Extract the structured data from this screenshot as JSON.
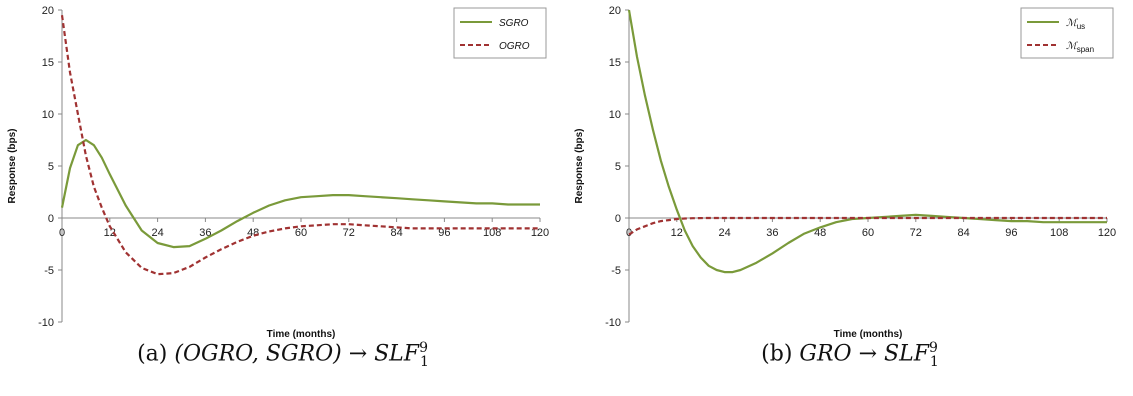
{
  "chart_data": [
    {
      "type": "line",
      "xlabel": "Time (months)",
      "ylabel": "Response (bps)",
      "xlim": [
        0,
        120
      ],
      "ylim": [
        -10,
        20
      ],
      "xticks": [
        0,
        12,
        24,
        36,
        48,
        60,
        72,
        84,
        96,
        108,
        120
      ],
      "yticks": [
        -10,
        -5,
        0,
        5,
        10,
        15,
        20
      ],
      "legend_position": "top-right",
      "caption": {
        "label": "(a)",
        "math": "(OGRO, SGRO) → SLF",
        "sup": "9",
        "sub": "1"
      },
      "series": [
        {
          "name": "SGRO",
          "color": "#7a9a3a",
          "dash": "solid",
          "x": [
            0,
            2,
            4,
            6,
            8,
            10,
            12,
            16,
            20,
            24,
            28,
            32,
            36,
            40,
            44,
            48,
            52,
            56,
            60,
            64,
            68,
            72,
            76,
            80,
            84,
            88,
            92,
            96,
            100,
            104,
            108,
            112,
            116,
            120
          ],
          "y": [
            1,
            4.8,
            7,
            7.5,
            7,
            5.8,
            4.2,
            1.2,
            -1.2,
            -2.4,
            -2.8,
            -2.7,
            -2.0,
            -1.2,
            -0.3,
            0.5,
            1.2,
            1.7,
            2.0,
            2.1,
            2.2,
            2.2,
            2.1,
            2.0,
            1.9,
            1.8,
            1.7,
            1.6,
            1.5,
            1.4,
            1.4,
            1.3,
            1.3,
            1.3
          ]
        },
        {
          "name": "OGRO",
          "color": "#a03232",
          "dash": "dashed",
          "x": [
            0,
            2,
            4,
            6,
            8,
            10,
            12,
            16,
            20,
            24,
            28,
            32,
            36,
            40,
            44,
            48,
            52,
            56,
            60,
            64,
            68,
            72,
            76,
            80,
            84,
            88,
            92,
            96,
            100,
            104,
            108,
            112,
            116,
            120
          ],
          "y": [
            19.5,
            14,
            10,
            6,
            3,
            1,
            -0.8,
            -3.3,
            -4.8,
            -5.4,
            -5.3,
            -4.7,
            -3.8,
            -3.0,
            -2.3,
            -1.7,
            -1.3,
            -1.0,
            -0.8,
            -0.7,
            -0.6,
            -0.6,
            -0.7,
            -0.8,
            -0.9,
            -1.0,
            -1.0,
            -1.0,
            -1.0,
            -1.0,
            -1.0,
            -1.0,
            -1.0,
            -1.0
          ]
        }
      ]
    },
    {
      "type": "line",
      "xlabel": "Time (months)",
      "ylabel": "Response (bps)",
      "xlim": [
        0,
        120
      ],
      "ylim": [
        -10,
        20
      ],
      "xticks": [
        0,
        12,
        24,
        36,
        48,
        60,
        72,
        84,
        96,
        108,
        120
      ],
      "yticks": [
        -10,
        -5,
        0,
        5,
        10,
        15,
        20
      ],
      "legend_position": "top-right",
      "caption": {
        "label": "(b)",
        "math": "GRO → SLF",
        "sup": "9",
        "sub": "1"
      },
      "series": [
        {
          "name": "M_us",
          "legend_main": "ℳ",
          "legend_sub": "us",
          "color": "#7a9a3a",
          "dash": "solid",
          "x": [
            0,
            2,
            4,
            6,
            8,
            10,
            12,
            14,
            16,
            18,
            20,
            22,
            24,
            26,
            28,
            32,
            36,
            40,
            44,
            48,
            52,
            56,
            60,
            64,
            68,
            72,
            76,
            80,
            84,
            88,
            92,
            96,
            100,
            104,
            108,
            112,
            116,
            120
          ],
          "y": [
            20,
            15.5,
            11.8,
            8.5,
            5.5,
            3.0,
            0.8,
            -1.2,
            -2.7,
            -3.8,
            -4.6,
            -5.0,
            -5.2,
            -5.2,
            -5.0,
            -4.3,
            -3.4,
            -2.4,
            -1.5,
            -0.9,
            -0.4,
            -0.1,
            0.0,
            0.1,
            0.2,
            0.3,
            0.2,
            0.1,
            0.0,
            -0.1,
            -0.2,
            -0.3,
            -0.3,
            -0.4,
            -0.4,
            -0.4,
            -0.4,
            -0.4
          ]
        },
        {
          "name": "M_span",
          "legend_main": "ℳ",
          "legend_sub": "span",
          "color": "#a03232",
          "dash": "dashed",
          "x": [
            0,
            2,
            4,
            6,
            8,
            10,
            12,
            14,
            16,
            20,
            24,
            30,
            36,
            48,
            60,
            72,
            84,
            96,
            108,
            120
          ],
          "y": [
            -1.6,
            -1.1,
            -0.8,
            -0.5,
            -0.3,
            -0.2,
            -0.1,
            -0.05,
            -0.02,
            0,
            0,
            0,
            0,
            0,
            0,
            0,
            0,
            0,
            0,
            0
          ]
        }
      ]
    }
  ]
}
